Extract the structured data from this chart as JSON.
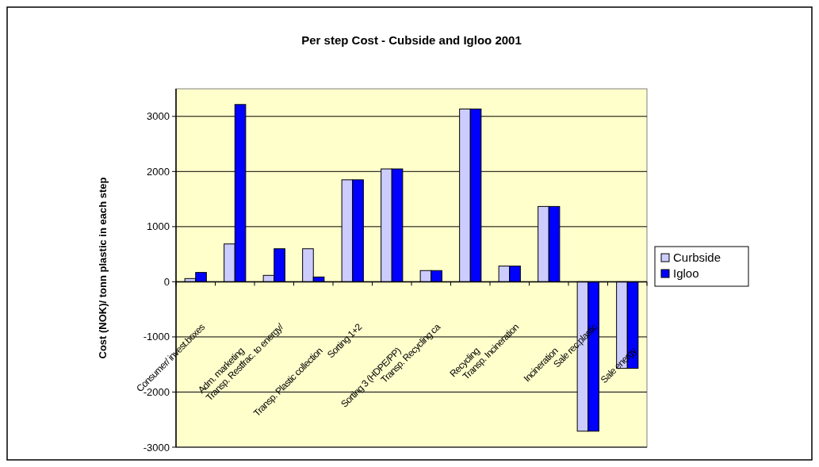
{
  "chart_data": {
    "type": "bar",
    "title": "Per step Cost - Cubside and Igloo 2001",
    "ylabel": "Cost (NOK)/ tonn plastic in each step",
    "categories": [
      "Consumer/ invest.boxes",
      "Adm. marketing",
      "Transp. Restfrac. to energy/",
      "Transp. Plastic collection",
      "Sorting 1+2",
      "Sorting 3 (HDPE/PP)",
      "Transp. Recycling ca",
      "Recycling",
      "Transp. Incineration",
      "Incineration",
      "Sale rec.plastic",
      "Sale energy"
    ],
    "series": [
      {
        "name": "Curbside",
        "color": "#ccccff",
        "values": [
          58,
          686,
          116,
          599,
          1849,
          2047,
          203,
          3134,
          285,
          1366,
          -2710,
          -1570
        ]
      },
      {
        "name": "Igloo",
        "color": "#0000ff",
        "values": [
          169,
          3215,
          599,
          87,
          1849,
          2047,
          203,
          3134,
          285,
          1366,
          -2710,
          -1570
        ]
      }
    ],
    "ylim": [
      -3000,
      3500
    ],
    "yticks": [
      -3000,
      -2000,
      -1000,
      0,
      1000,
      2000,
      3000
    ],
    "grid": "y",
    "legend": "right"
  }
}
